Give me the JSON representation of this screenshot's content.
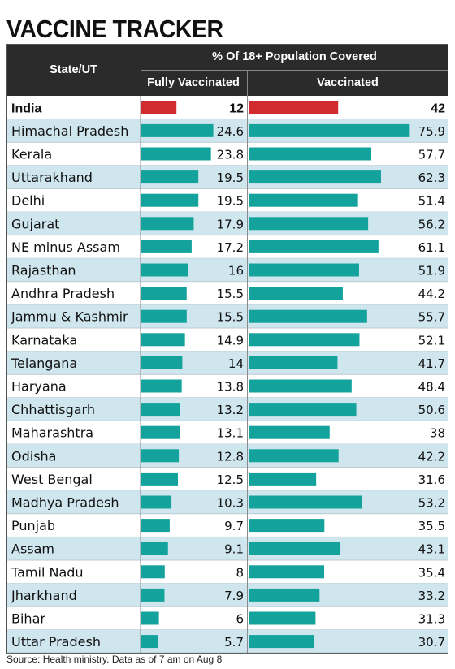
{
  "title": "VACCINE TRACKER",
  "columns": {
    "state": "State/UT",
    "group": "% Of 18+ Population Covered",
    "fully": "Fully Vaccinated",
    "vaccinated": "Vaccinated"
  },
  "source": "Source: Health ministry. Data as of 7 am on Aug 8",
  "colors": {
    "header_bg": "#2b2b2b",
    "bar_teal": "#14a39c",
    "bar_india": "#d12a2f",
    "stripe": "#cfe6ee"
  },
  "chart_data": {
    "type": "bar",
    "categories": [
      "India",
      "Himachal Pradesh",
      "Kerala",
      "Uttarakhand",
      "Delhi",
      "Gujarat",
      "NE minus Assam",
      "Rajasthan",
      "Andhra Pradesh",
      "Jammu & Kashmir",
      "Karnataka",
      "Telangana",
      "Haryana",
      "Chhattisgarh",
      "Maharashtra",
      "Odisha",
      "West Bengal",
      "Madhya Pradesh",
      "Punjab",
      "Assam",
      "Tamil Nadu",
      "Jharkhand",
      "Bihar",
      "Uttar Pradesh"
    ],
    "series": [
      {
        "name": "Fully Vaccinated",
        "values": [
          12,
          24.6,
          23.8,
          19.5,
          19.5,
          17.9,
          17.2,
          16,
          15.5,
          15.5,
          14.9,
          14,
          13.8,
          13.2,
          13.1,
          12.8,
          12.5,
          10.3,
          9.7,
          9.1,
          8,
          7.9,
          6,
          5.7
        ]
      },
      {
        "name": "Vaccinated",
        "values": [
          42,
          75.9,
          57.7,
          62.3,
          51.4,
          56.2,
          61.1,
          51.9,
          44.2,
          55.7,
          52.1,
          41.7,
          48.4,
          50.6,
          38,
          42.2,
          31.6,
          53.2,
          35.5,
          43.1,
          35.4,
          33.2,
          31.3,
          30.7
        ]
      }
    ],
    "xlabel": "",
    "ylabel": "% Of 18+ Population Covered",
    "grid": false,
    "legend": "none"
  }
}
